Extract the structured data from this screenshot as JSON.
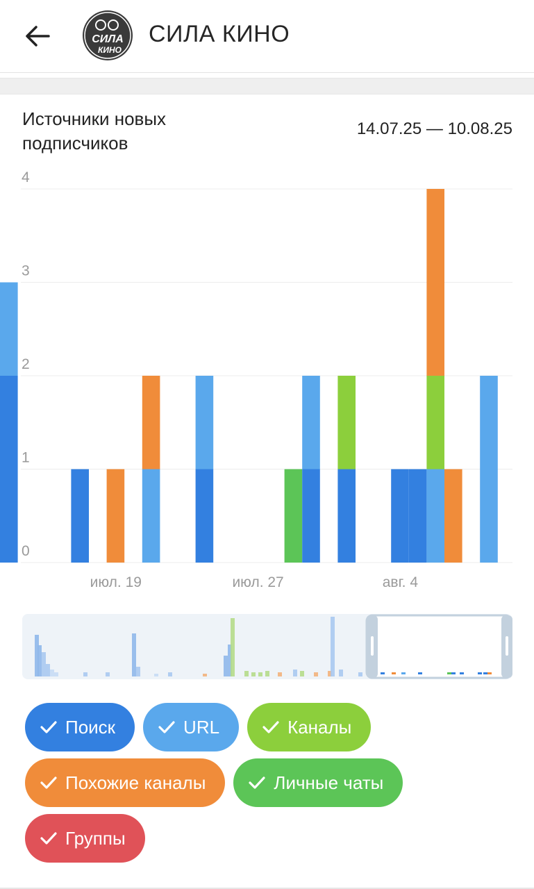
{
  "header": {
    "title": "СИЛА КИНО",
    "back_icon": "arrow-left-icon",
    "avatar_text_top": "СИЛА",
    "avatar_text_bottom": "КИНО"
  },
  "chart_header": {
    "title": "Источники новых подписчиков",
    "date_range": "14.07.25 — 10.08.25"
  },
  "colors": {
    "search": "#3380e0",
    "url": "#5aa8ec",
    "channels": "#8ccf3c",
    "similar": "#f08c3a",
    "private": "#5cc557",
    "groups": "#e05258"
  },
  "chart_data": {
    "type": "bar",
    "stacked": true,
    "ylim": [
      0,
      4
    ],
    "yticks": [
      "0",
      "1",
      "2",
      "3",
      "4"
    ],
    "xticks": [
      "июл. 19",
      "июл. 27",
      "авг. 4"
    ],
    "grid": true,
    "series": [
      {
        "name": "Поиск",
        "key": "search",
        "color": "#3380e0"
      },
      {
        "name": "URL",
        "key": "url",
        "color": "#5aa8ec"
      },
      {
        "name": "Каналы",
        "key": "channels",
        "color": "#8ccf3c"
      },
      {
        "name": "Похожие каналы",
        "key": "similar",
        "color": "#f08c3a"
      },
      {
        "name": "Личные чаты",
        "key": "private",
        "color": "#5cc557"
      },
      {
        "name": "Группы",
        "key": "groups",
        "color": "#e05258"
      }
    ],
    "days": [
      {
        "day": 0,
        "search": 2,
        "url": 1
      },
      {
        "day": 4,
        "search": 1
      },
      {
        "day": 6,
        "similar": 1
      },
      {
        "day": 8,
        "url": 1,
        "similar": 1
      },
      {
        "day": 11,
        "search": 1,
        "url": 1
      },
      {
        "day": 16,
        "private": 1
      },
      {
        "day": 17,
        "search": 1,
        "url": 1
      },
      {
        "day": 19,
        "search": 1,
        "channels": 1
      },
      {
        "day": 22,
        "search": 1
      },
      {
        "day": 23,
        "search": 1
      },
      {
        "day": 24,
        "url": 1,
        "channels": 1,
        "similar": 2
      },
      {
        "day": 25,
        "similar": 1
      },
      {
        "day": 27,
        "url": 2
      }
    ]
  },
  "legend": {
    "row1": [
      {
        "label": "Поиск",
        "key": "search"
      },
      {
        "label": "URL",
        "key": "url"
      },
      {
        "label": "Каналы",
        "key": "channels"
      }
    ],
    "row2": [
      {
        "label": "Похожие каналы",
        "key": "similar"
      },
      {
        "label": "Личные чаты",
        "key": "private"
      }
    ],
    "row3": [
      {
        "label": "Группы",
        "key": "groups"
      }
    ]
  }
}
